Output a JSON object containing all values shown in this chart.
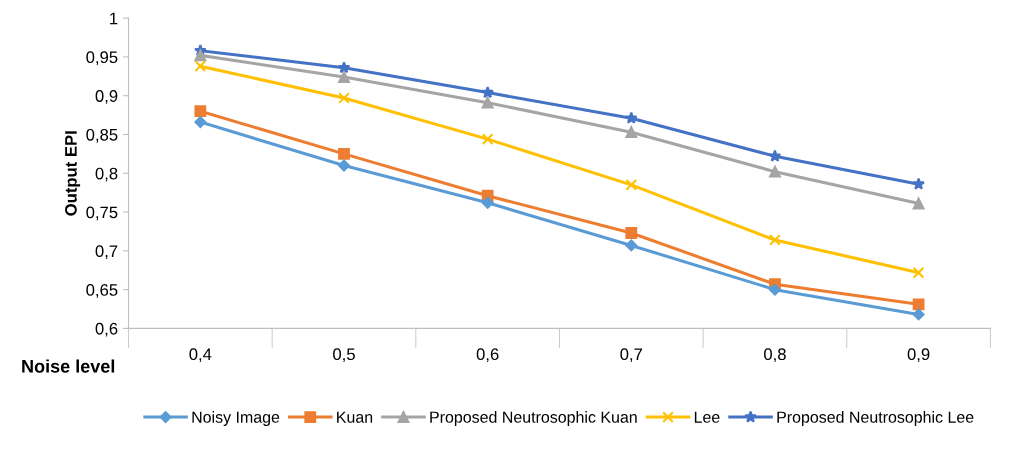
{
  "chart_data": {
    "type": "line",
    "ylabel": "Output EPI",
    "xlabel": "Noise level",
    "categories": [
      "0,4",
      "0,5",
      "0,6",
      "0,7",
      "0,8",
      "0,9"
    ],
    "series": [
      {
        "name": "Noisy Image",
        "color": "#5b9bd5",
        "marker": "diamond",
        "values": [
          0.866,
          0.81,
          0.762,
          0.707,
          0.65,
          0.618
        ]
      },
      {
        "name": "Kuan",
        "color": "#ed7d31",
        "marker": "square",
        "values": [
          0.88,
          0.825,
          0.771,
          0.723,
          0.657,
          0.631
        ]
      },
      {
        "name": "Proposed Neutrosophic Kuan",
        "color": "#a5a5a5",
        "marker": "triangle",
        "values": [
          0.952,
          0.924,
          0.891,
          0.853,
          0.802,
          0.761
        ]
      },
      {
        "name": "Lee",
        "color": "#ffc000",
        "marker": "cross",
        "values": [
          0.938,
          0.897,
          0.844,
          0.785,
          0.714,
          0.672
        ]
      },
      {
        "name": "Proposed Neutrosophic Lee",
        "color": "#4472c4",
        "marker": "star",
        "values": [
          0.958,
          0.936,
          0.904,
          0.871,
          0.822,
          0.786
        ]
      }
    ],
    "ylim": [
      0.6,
      1
    ],
    "yticks": [
      {
        "value": 0.6,
        "label": "0,6"
      },
      {
        "value": 0.65,
        "label": "0,65"
      },
      {
        "value": 0.7,
        "label": "0,7"
      },
      {
        "value": 0.75,
        "label": "0,75"
      },
      {
        "value": 0.8,
        "label": "0,8"
      },
      {
        "value": 0.85,
        "label": "0,85"
      },
      {
        "value": 0.9,
        "label": "0,9"
      },
      {
        "value": 0.95,
        "label": "0,95"
      },
      {
        "value": 1,
        "label": "1"
      }
    ],
    "grid": false,
    "legend": "bottom",
    "line_style": "solid"
  }
}
